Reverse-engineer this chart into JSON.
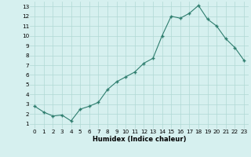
{
  "x": [
    0,
    1,
    2,
    3,
    4,
    5,
    6,
    7,
    8,
    9,
    10,
    11,
    12,
    13,
    14,
    15,
    16,
    17,
    18,
    19,
    20,
    21,
    22,
    23
  ],
  "y": [
    2.8,
    2.2,
    1.8,
    1.9,
    1.3,
    2.5,
    2.8,
    3.2,
    4.5,
    5.3,
    5.8,
    6.3,
    7.2,
    7.7,
    10.0,
    12.0,
    11.8,
    12.3,
    13.1,
    11.7,
    11.0,
    9.7,
    8.8,
    7.5
  ],
  "xlabel": "Humidex (Indice chaleur)",
  "ylabel_ticks": [
    1,
    2,
    3,
    4,
    5,
    6,
    7,
    8,
    9,
    10,
    11,
    12,
    13
  ],
  "xlim": [
    -0.5,
    23.5
  ],
  "ylim": [
    0.5,
    13.5
  ],
  "line_color": "#2e7d6e",
  "marker_color": "#2e7d6e",
  "bg_color": "#d6f0ef",
  "grid_color": "#b0d8d4",
  "xlabel_fontsize": 6.0,
  "tick_fontsize": 5.2
}
